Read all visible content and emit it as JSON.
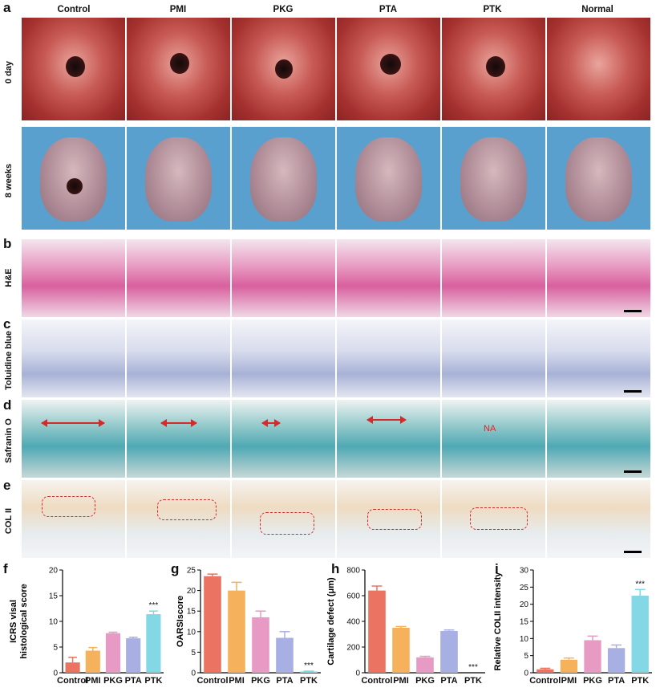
{
  "panels": {
    "a": "a",
    "b": "b",
    "c": "c",
    "d": "d",
    "e": "e",
    "f": "f",
    "g": "g",
    "h": "h",
    "i": "i"
  },
  "columns": [
    "Control",
    "PMI",
    "PKG",
    "PTA",
    "PTK",
    "Normal"
  ],
  "row_labels": {
    "day0": "0 day",
    "week8": "8 weeks",
    "he": "H&E",
    "tb": "Toluidine blue",
    "so": "Safranin O",
    "col2": "COL II"
  },
  "na_label": "NA",
  "colors": {
    "Control": "#ea7362",
    "PMI": "#f5b15c",
    "PKG": "#e79ac4",
    "PTA": "#a8afe2",
    "PTK": "#84d7e5",
    "defect": "#d42a2a"
  },
  "chart_data": [
    {
      "type": "bar",
      "panel": "f",
      "ylabel": "ICRS visal histological score",
      "categories": [
        "Control",
        "PMI",
        "PKG",
        "PTA",
        "PTK"
      ],
      "values": [
        2.0,
        4.3,
        7.7,
        6.7,
        11.4
      ],
      "errors": [
        1.0,
        0.6,
        0.2,
        0.2,
        0.6
      ],
      "yticks": [
        "0",
        "5",
        "10",
        "15",
        "20"
      ],
      "ylim": [
        0,
        20
      ],
      "annotation": {
        "category": "PTK",
        "text": "***"
      }
    },
    {
      "type": "bar",
      "panel": "g",
      "ylabel": "OARSIscore",
      "categories": [
        "Control",
        "PMI",
        "PKG",
        "PTA",
        "PTK"
      ],
      "values": [
        23.5,
        20.0,
        13.5,
        8.5,
        0.3
      ],
      "errors": [
        0.5,
        2.0,
        1.5,
        1.5,
        0.1
      ],
      "yticks": [
        "0",
        "5",
        "10",
        "15",
        "20",
        "25"
      ],
      "ylim": [
        0,
        25
      ],
      "annotation": {
        "category": "PTK",
        "text": "***"
      }
    },
    {
      "type": "bar",
      "panel": "h",
      "ylabel": "Cartilage defect (μm)",
      "categories": [
        "Control",
        "PMI",
        "PKG",
        "PTA",
        "PTK"
      ],
      "values": [
        640,
        350,
        120,
        325,
        0
      ],
      "errors": [
        35,
        10,
        8,
        8,
        0
      ],
      "yticks": [
        "0",
        "200",
        "400",
        "600",
        "800"
      ],
      "ylim": [
        0,
        800
      ],
      "annotation": {
        "category": "PTK",
        "text": "***"
      }
    },
    {
      "type": "bar",
      "panel": "i",
      "ylabel": "Relative COLII intensity",
      "categories": [
        "Control",
        "PMI",
        "PKG",
        "PTA",
        "PTK"
      ],
      "values": [
        1.0,
        3.8,
        9.5,
        7.2,
        22.5
      ],
      "errors": [
        0.3,
        0.5,
        1.2,
        0.9,
        1.8
      ],
      "yticks": [
        "0",
        "5",
        "10",
        "15",
        "20",
        "25",
        "30"
      ],
      "ylim": [
        0,
        30
      ],
      "annotation": {
        "category": "PTK",
        "text": "***"
      }
    }
  ]
}
